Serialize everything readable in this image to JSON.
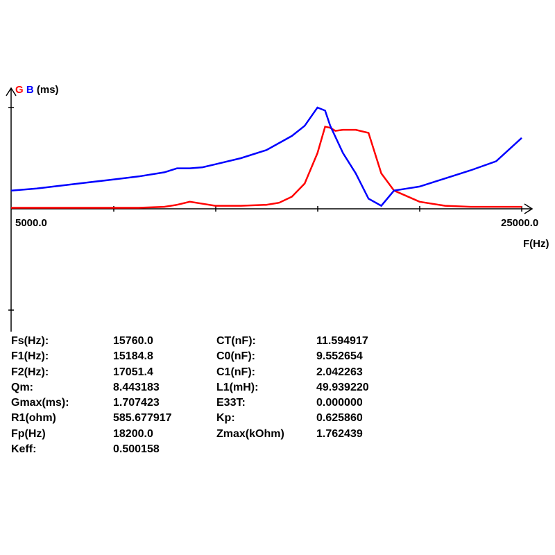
{
  "chart_data": {
    "type": "line",
    "y_title": {
      "g": "G",
      "b": "B",
      "unit": "(ms)"
    },
    "xlabel": "F(Hz)",
    "x_tick_labels": [
      "5000.0",
      "25000.0"
    ],
    "xlim": [
      5000,
      25000
    ],
    "y_range_note": "y axis unlabeled; values normalized to plot top = 1.0",
    "ylim": [
      0,
      1.0
    ],
    "grid": false,
    "series": [
      {
        "name": "G",
        "color": "#ff0000",
        "x": [
          5000,
          6000,
          7000,
          8000,
          9000,
          10000,
          11000,
          11500,
          12000,
          12500,
          13000,
          14000,
          15000,
          15500,
          16000,
          16500,
          17000,
          17300,
          17500,
          17700,
          18000,
          18500,
          19000,
          19500,
          20000,
          21000,
          22000,
          23000,
          24000,
          25000
        ],
        "y": [
          0.01,
          0.01,
          0.01,
          0.01,
          0.01,
          0.01,
          0.02,
          0.04,
          0.07,
          0.05,
          0.03,
          0.03,
          0.04,
          0.06,
          0.12,
          0.25,
          0.55,
          0.81,
          0.8,
          0.77,
          0.78,
          0.78,
          0.75,
          0.35,
          0.18,
          0.07,
          0.03,
          0.02,
          0.02,
          0.02
        ]
      },
      {
        "name": "B",
        "color": "#0000ff",
        "x": [
          5000,
          6000,
          7000,
          8000,
          9000,
          10000,
          11000,
          11500,
          12000,
          12500,
          13000,
          14000,
          15000,
          15500,
          16000,
          16500,
          17000,
          17300,
          17500,
          18000,
          18500,
          19000,
          19500,
          20000,
          20500,
          21000,
          22000,
          23000,
          24000,
          25000
        ],
        "y": [
          0.18,
          0.2,
          0.23,
          0.26,
          0.29,
          0.32,
          0.36,
          0.4,
          0.4,
          0.41,
          0.44,
          0.5,
          0.58,
          0.65,
          0.72,
          0.82,
          1.0,
          0.97,
          0.82,
          0.55,
          0.35,
          0.1,
          0.03,
          0.18,
          0.2,
          0.22,
          0.3,
          0.38,
          0.47,
          0.7
        ]
      }
    ]
  },
  "parameters": [
    {
      "label": "Fs(Hz):",
      "value": "15760.0",
      "label2": "CT(nF):",
      "value2": "11.594917"
    },
    {
      "label": "F1(Hz):",
      "value": "15184.8",
      "label2": "C0(nF):",
      "value2": "9.552654"
    },
    {
      "label": "F2(Hz):",
      "value": "17051.4",
      "label2": "C1(nF):",
      "value2": "2.042263"
    },
    {
      "label": "Qm:",
      "value": "8.443183",
      "label2": "L1(mH):",
      "value2": "49.939220"
    },
    {
      "label": "Gmax(ms):",
      "value": "1.707423",
      "label2": "E33T:",
      "value2": "0.000000"
    },
    {
      "label": "R1(ohm)",
      "value": "585.677917",
      "label2": "Kp:",
      "value2": "0.625860"
    },
    {
      "label": "Fp(Hz)",
      "value": "18200.0",
      "label2": "Zmax(kOhm)",
      "value2": "1.762439"
    },
    {
      "label": "Keff:",
      "value": "0.500158",
      "label2": "",
      "value2": ""
    }
  ]
}
